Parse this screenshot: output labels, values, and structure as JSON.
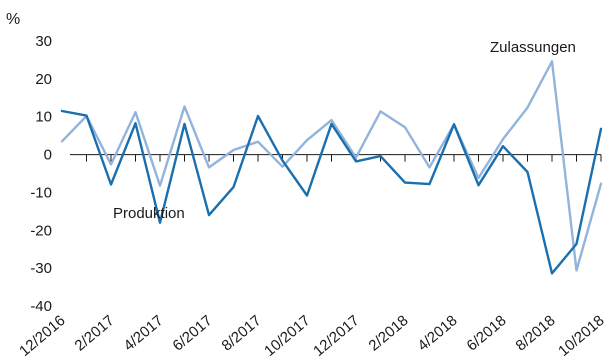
{
  "chart_data": {
    "type": "line",
    "ylabel": "%",
    "ylim": [
      -40,
      30
    ],
    "yticks": [
      30,
      20,
      10,
      0,
      -10,
      -20,
      -30,
      -40
    ],
    "grid": false,
    "x": [
      "12/2016",
      "1/2017",
      "2/2017",
      "3/2017",
      "4/2017",
      "5/2017",
      "6/2017",
      "7/2017",
      "8/2017",
      "9/2017",
      "10/2017",
      "11/2017",
      "12/2017",
      "1/2018",
      "2/2018",
      "3/2018",
      "4/2018",
      "5/2018",
      "6/2018",
      "7/2018",
      "8/2018",
      "9/2018",
      "10/2018"
    ],
    "xtick_labels": [
      "12/2016",
      "2/2017",
      "4/2017",
      "6/2017",
      "8/2017",
      "10/2017",
      "12/2017",
      "2/2018",
      "4/2018",
      "6/2018",
      "8/2018",
      "10/2018"
    ],
    "series": [
      {
        "name": "Produktion",
        "color": "#1a6fae",
        "values": [
          11.5,
          10.3,
          -7.9,
          8.3,
          -18.0,
          8.1,
          -16.0,
          -8.6,
          10.2,
          -1.6,
          -10.8,
          8.1,
          -1.8,
          -0.4,
          -7.4,
          -7.8,
          8.0,
          -8.1,
          2.2,
          -4.6,
          -31.4,
          -23.6,
          6.8
        ]
      },
      {
        "name": "Zulassungen",
        "color": "#92b4dc",
        "values": [
          3.5,
          10.2,
          -2.6,
          11.2,
          -8.2,
          12.7,
          -3.4,
          1.2,
          3.4,
          -3.2,
          3.8,
          9.1,
          -0.8,
          11.4,
          7.2,
          -3.4,
          8.0,
          -6.2,
          4.1,
          12.4,
          24.6,
          -30.6,
          -7.7
        ]
      }
    ]
  }
}
